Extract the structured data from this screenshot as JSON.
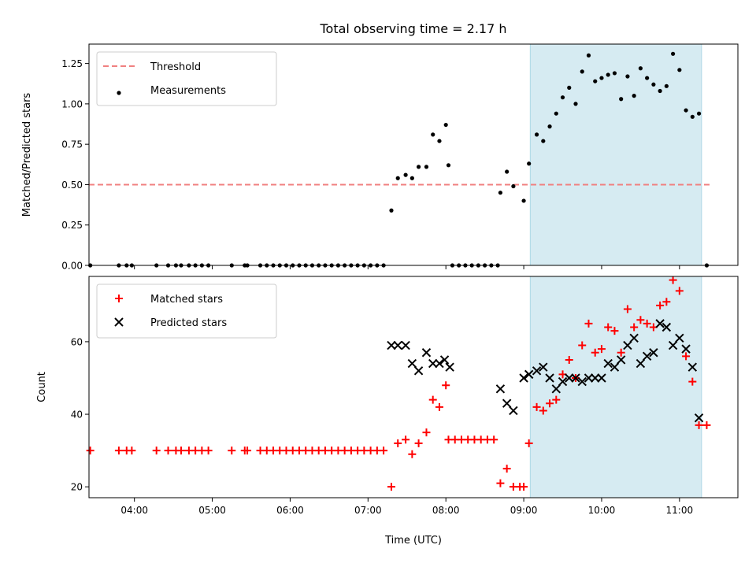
{
  "chart_data": [
    {
      "type": "scatter",
      "title": "Total observing time = 2.17 h",
      "ylabel": "Matched/Predicted stars",
      "xlabel": "",
      "xlim": [
        "03:25",
        "11:45"
      ],
      "ylim": [
        0,
        1.37
      ],
      "xticks": [
        "04:00",
        "05:00",
        "06:00",
        "07:00",
        "08:00",
        "09:00",
        "10:00",
        "11:00"
      ],
      "xtick_labels_visible": false,
      "yticks": [
        0.0,
        0.25,
        0.5,
        0.75,
        1.0,
        1.25
      ],
      "ytick_labels": [
        "0.00",
        "0.25",
        "0.50",
        "0.75",
        "1.00",
        "1.25"
      ],
      "legend_position": "upper-left",
      "shaded_region": {
        "x_start": "09:05",
        "x_end": "11:17",
        "color": "#add8e6"
      },
      "threshold": {
        "name": "Threshold",
        "y": 0.5,
        "x_start": "03:25",
        "x_end": "11:25",
        "color": "#f08080",
        "style": "dashed"
      },
      "series": [
        {
          "name": "Measurements",
          "marker": "dot",
          "color": "#000000",
          "points": [
            [
              "03:26",
              0
            ],
            [
              "03:48",
              0
            ],
            [
              "03:54",
              0
            ],
            [
              "03:58",
              0
            ],
            [
              "04:17",
              0
            ],
            [
              "04:26",
              0
            ],
            [
              "04:32",
              0
            ],
            [
              "04:36",
              0
            ],
            [
              "04:42",
              0
            ],
            [
              "04:47",
              0
            ],
            [
              "04:52",
              0
            ],
            [
              "04:57",
              0
            ],
            [
              "05:15",
              0
            ],
            [
              "05:25",
              0
            ],
            [
              "05:27",
              0
            ],
            [
              "05:37",
              0
            ],
            [
              "05:42",
              0
            ],
            [
              "05:47",
              0
            ],
            [
              "05:52",
              0
            ],
            [
              "05:57",
              0
            ],
            [
              "06:02",
              0
            ],
            [
              "06:07",
              0
            ],
            [
              "06:12",
              0
            ],
            [
              "06:17",
              0
            ],
            [
              "06:22",
              0
            ],
            [
              "06:27",
              0
            ],
            [
              "06:32",
              0
            ],
            [
              "06:37",
              0
            ],
            [
              "06:42",
              0
            ],
            [
              "06:47",
              0
            ],
            [
              "06:52",
              0
            ],
            [
              "06:57",
              0
            ],
            [
              "07:02",
              0
            ],
            [
              "07:07",
              0
            ],
            [
              "07:12",
              0
            ],
            [
              "07:18",
              0.34
            ],
            [
              "07:23",
              0.54
            ],
            [
              "07:29",
              0.56
            ],
            [
              "07:34",
              0.54
            ],
            [
              "07:39",
              0.61
            ],
            [
              "07:45",
              0.61
            ],
            [
              "07:50",
              0.81
            ],
            [
              "07:55",
              0.77
            ],
            [
              "08:00",
              0.87
            ],
            [
              "08:02",
              0.62
            ],
            [
              "08:05",
              0
            ],
            [
              "08:10",
              0
            ],
            [
              "08:15",
              0
            ],
            [
              "08:20",
              0
            ],
            [
              "08:25",
              0
            ],
            [
              "08:30",
              0
            ],
            [
              "08:35",
              0
            ],
            [
              "08:40",
              0
            ],
            [
              "08:42",
              0.45
            ],
            [
              "08:47",
              0.58
            ],
            [
              "08:52",
              0.49
            ],
            [
              "09:00",
              0.4
            ],
            [
              "09:04",
              0.63
            ],
            [
              "09:10",
              0.81
            ],
            [
              "09:15",
              0.77
            ],
            [
              "09:20",
              0.86
            ],
            [
              "09:25",
              0.94
            ],
            [
              "09:30",
              1.04
            ],
            [
              "09:35",
              1.1
            ],
            [
              "09:40",
              1.0
            ],
            [
              "09:45",
              1.2
            ],
            [
              "09:50",
              1.3
            ],
            [
              "09:55",
              1.14
            ],
            [
              "10:00",
              1.16
            ],
            [
              "10:05",
              1.18
            ],
            [
              "10:10",
              1.19
            ],
            [
              "10:15",
              1.03
            ],
            [
              "10:20",
              1.17
            ],
            [
              "10:25",
              1.05
            ],
            [
              "10:30",
              1.22
            ],
            [
              "10:35",
              1.16
            ],
            [
              "10:40",
              1.12
            ],
            [
              "10:45",
              1.08
            ],
            [
              "10:50",
              1.11
            ],
            [
              "10:55",
              1.31
            ],
            [
              "11:00",
              1.21
            ],
            [
              "11:05",
              0.96
            ],
            [
              "11:10",
              0.92
            ],
            [
              "11:15",
              0.94
            ],
            [
              "11:21",
              0
            ]
          ]
        }
      ]
    },
    {
      "type": "scatter",
      "title": "",
      "xlabel": "Time (UTC)",
      "ylabel": "Count",
      "xlim": [
        "03:25",
        "11:45"
      ],
      "ylim": [
        17,
        78
      ],
      "xticks": [
        "04:00",
        "05:00",
        "06:00",
        "07:00",
        "08:00",
        "09:00",
        "10:00",
        "11:00"
      ],
      "yticks": [
        20,
        40,
        60
      ],
      "legend_position": "upper-left",
      "shaded_region": {
        "x_start": "09:05",
        "x_end": "11:17",
        "color": "#add8e6"
      },
      "series": [
        {
          "name": "Matched stars",
          "marker": "plus",
          "color": "#ff0000",
          "points": [
            [
              "03:26",
              30
            ],
            [
              "03:48",
              30
            ],
            [
              "03:54",
              30
            ],
            [
              "03:58",
              30
            ],
            [
              "04:17",
              30
            ],
            [
              "04:26",
              30
            ],
            [
              "04:32",
              30
            ],
            [
              "04:36",
              30
            ],
            [
              "04:42",
              30
            ],
            [
              "04:47",
              30
            ],
            [
              "04:52",
              30
            ],
            [
              "04:57",
              30
            ],
            [
              "05:15",
              30
            ],
            [
              "05:25",
              30
            ],
            [
              "05:27",
              30
            ],
            [
              "05:37",
              30
            ],
            [
              "05:42",
              30
            ],
            [
              "05:47",
              30
            ],
            [
              "05:52",
              30
            ],
            [
              "05:57",
              30
            ],
            [
              "06:02",
              30
            ],
            [
              "06:07",
              30
            ],
            [
              "06:12",
              30
            ],
            [
              "06:17",
              30
            ],
            [
              "06:22",
              30
            ],
            [
              "06:27",
              30
            ],
            [
              "06:32",
              30
            ],
            [
              "06:37",
              30
            ],
            [
              "06:42",
              30
            ],
            [
              "06:47",
              30
            ],
            [
              "06:52",
              30
            ],
            [
              "06:57",
              30
            ],
            [
              "07:02",
              30
            ],
            [
              "07:07",
              30
            ],
            [
              "07:12",
              30
            ],
            [
              "07:18",
              20
            ],
            [
              "07:23",
              32
            ],
            [
              "07:29",
              33
            ],
            [
              "07:34",
              29
            ],
            [
              "07:39",
              32
            ],
            [
              "07:45",
              35
            ],
            [
              "07:50",
              44
            ],
            [
              "07:55",
              42
            ],
            [
              "08:00",
              48
            ],
            [
              "08:02",
              33
            ],
            [
              "08:07",
              33
            ],
            [
              "08:12",
              33
            ],
            [
              "08:17",
              33
            ],
            [
              "08:22",
              33
            ],
            [
              "08:27",
              33
            ],
            [
              "08:32",
              33
            ],
            [
              "08:37",
              33
            ],
            [
              "08:42",
              21
            ],
            [
              "08:47",
              25
            ],
            [
              "08:52",
              20
            ],
            [
              "08:57",
              20
            ],
            [
              "09:00",
              20
            ],
            [
              "09:04",
              32
            ],
            [
              "09:10",
              42
            ],
            [
              "09:15",
              41
            ],
            [
              "09:20",
              43
            ],
            [
              "09:25",
              44
            ],
            [
              "09:30",
              51
            ],
            [
              "09:35",
              55
            ],
            [
              "09:40",
              50
            ],
            [
              "09:45",
              59
            ],
            [
              "09:50",
              65
            ],
            [
              "09:55",
              57
            ],
            [
              "10:00",
              58
            ],
            [
              "10:05",
              64
            ],
            [
              "10:10",
              63
            ],
            [
              "10:15",
              57
            ],
            [
              "10:20",
              69
            ],
            [
              "10:25",
              64
            ],
            [
              "10:30",
              66
            ],
            [
              "10:35",
              65
            ],
            [
              "10:40",
              64
            ],
            [
              "10:45",
              70
            ],
            [
              "10:50",
              71
            ],
            [
              "10:55",
              77
            ],
            [
              "11:00",
              74
            ],
            [
              "11:05",
              56
            ],
            [
              "11:10",
              49
            ],
            [
              "11:15",
              37
            ],
            [
              "11:21",
              37
            ]
          ]
        },
        {
          "name": "Predicted stars",
          "marker": "x",
          "color": "#000000",
          "points": [
            [
              "07:18",
              59
            ],
            [
              "07:23",
              59
            ],
            [
              "07:29",
              59
            ],
            [
              "07:34",
              54
            ],
            [
              "07:39",
              52
            ],
            [
              "07:45",
              57
            ],
            [
              "07:50",
              54
            ],
            [
              "07:55",
              54
            ],
            [
              "07:59",
              55
            ],
            [
              "08:03",
              53
            ],
            [
              "08:42",
              47
            ],
            [
              "08:47",
              43
            ],
            [
              "08:52",
              41
            ],
            [
              "09:00",
              50
            ],
            [
              "09:04",
              51
            ],
            [
              "09:10",
              52
            ],
            [
              "09:15",
              53
            ],
            [
              "09:20",
              50
            ],
            [
              "09:25",
              47
            ],
            [
              "09:30",
              49
            ],
            [
              "09:35",
              50
            ],
            [
              "09:40",
              50
            ],
            [
              "09:45",
              49
            ],
            [
              "09:50",
              50
            ],
            [
              "09:55",
              50
            ],
            [
              "10:00",
              50
            ],
            [
              "10:05",
              54
            ],
            [
              "10:10",
              53
            ],
            [
              "10:15",
              55
            ],
            [
              "10:20",
              59
            ],
            [
              "10:25",
              61
            ],
            [
              "10:30",
              54
            ],
            [
              "10:35",
              56
            ],
            [
              "10:40",
              57
            ],
            [
              "10:45",
              65
            ],
            [
              "10:50",
              64
            ],
            [
              "10:55",
              59
            ],
            [
              "11:00",
              61
            ],
            [
              "11:05",
              58
            ],
            [
              "11:10",
              53
            ],
            [
              "11:15",
              39
            ]
          ]
        }
      ]
    }
  ]
}
